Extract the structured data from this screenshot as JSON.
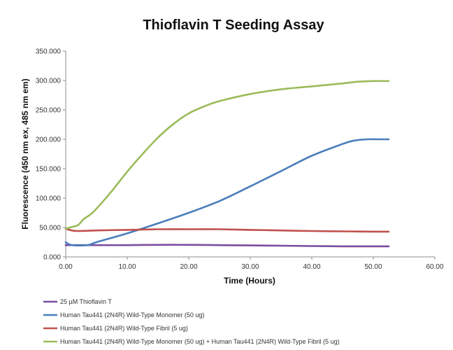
{
  "chart_data": {
    "type": "line",
    "title": "Thioflavin T Seeding Assay",
    "xlabel": "Time (Hours)",
    "ylabel": "Fluorescence (450 nm ex, 485 nm em)",
    "xlim": [
      0,
      60
    ],
    "ylim": [
      0,
      350
    ],
    "x_ticks": [
      "0.00",
      "10.00",
      "20.00",
      "30.00",
      "40.00",
      "50.00",
      "60.00"
    ],
    "y_ticks": [
      "0.000",
      "50.000",
      "100.000",
      "150.000",
      "200.000",
      "250.000",
      "300.000",
      "350.000"
    ],
    "grid": false,
    "legend_position": "bottom-left",
    "series": [
      {
        "name": "25 µM Thioflavin T",
        "color": "#7a4d9f",
        "x": [
          0,
          2,
          5,
          10,
          15,
          20,
          25,
          30,
          35,
          40,
          45,
          50,
          52.5
        ],
        "values": [
          20,
          20,
          20,
          20,
          20.5,
          20.5,
          20,
          19.5,
          19,
          18.5,
          18,
          18,
          18
        ]
      },
      {
        "name": "Human Tau441 (2N4R) Wild-Type Monomer (50 ug)",
        "color": "#4a7ebb",
        "x": [
          0,
          1,
          3.5,
          5,
          10,
          15,
          20,
          25,
          30,
          35,
          40,
          45,
          47,
          49,
          51,
          52.5
        ],
        "values": [
          25,
          20,
          20,
          25,
          40,
          57,
          75,
          95,
          120,
          146,
          172,
          192,
          198,
          200,
          200,
          200
        ]
      },
      {
        "name": "Human Tau441 (2N4R) Wild-Type Fibril (5 ug)",
        "color": "#c0504d",
        "x": [
          0,
          1,
          2,
          5,
          10,
          15,
          20,
          25,
          30,
          35,
          40,
          45,
          50,
          52.5
        ],
        "values": [
          48,
          45,
          44,
          45,
          46,
          47,
          47,
          47,
          46,
          45,
          44,
          43.5,
          43,
          43
        ]
      },
      {
        "name": "Human Tau441 (2N4R) Wild-Type Monomer (50 ug) + Human Tau441 (2N4R) Wild-Type Fibril (5 ug)",
        "color": "#9bbb59",
        "x": [
          0,
          1,
          2,
          3,
          4,
          5,
          7.5,
          10,
          12.5,
          15,
          17.5,
          20,
          22.5,
          25,
          30,
          35,
          40,
          45,
          47.5,
          50,
          52.5
        ],
        "values": [
          48,
          51,
          54,
          65,
          72,
          82,
          112,
          145,
          175,
          203,
          226,
          244,
          256,
          265,
          277,
          285,
          290,
          295,
          298,
          299,
          299
        ]
      }
    ]
  }
}
